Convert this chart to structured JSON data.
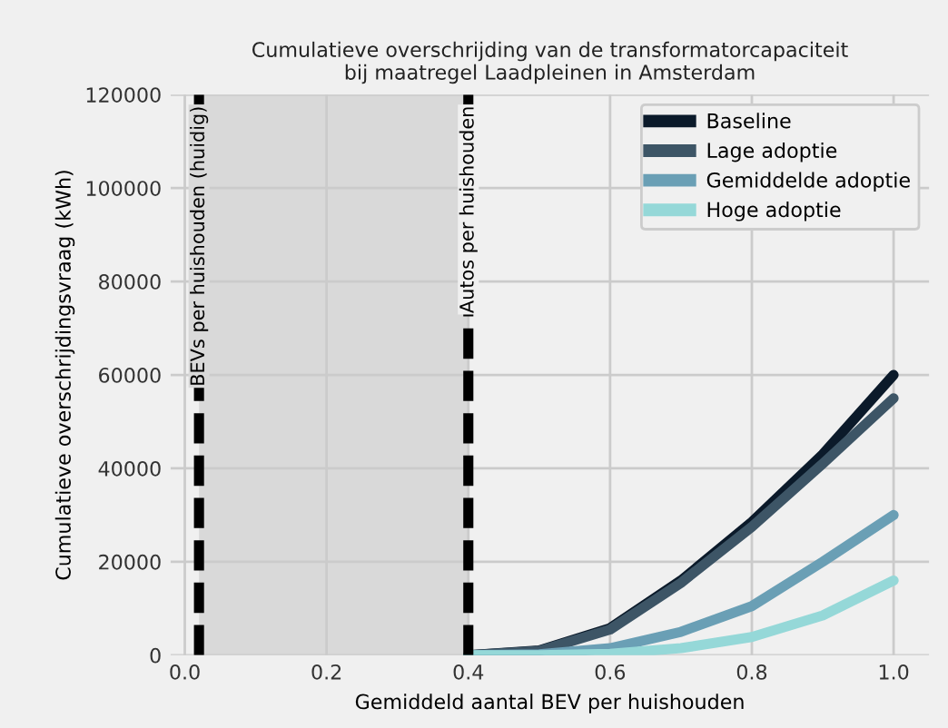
{
  "chart_data": {
    "type": "line",
    "title": "Cumulatieve overschrijding van de transformatorcapaciteit\nbij maatregel Laadpleinen in Amsterdam",
    "xlabel": "Gemiddeld aantal BEV per huishouden",
    "ylabel": "Cumulatieve overschrijdingsvraag (kWh)",
    "x": [
      0.4,
      0.5,
      0.6,
      0.7,
      0.8,
      0.9,
      1.0
    ],
    "series": [
      {
        "name": "Baseline",
        "color": "#0b1a2a",
        "values": [
          0,
          1000,
          5800,
          16000,
          28500,
          43000,
          60000
        ]
      },
      {
        "name": "Lage adoptie",
        "color": "#3d5566",
        "values": [
          0,
          900,
          5500,
          15500,
          27500,
          41000,
          55000
        ]
      },
      {
        "name": "Gemiddelde adoptie",
        "color": "#6a9fb5",
        "values": [
          0,
          200,
          1500,
          5000,
          10500,
          20000,
          30000
        ]
      },
      {
        "name": "Hoge adoptie",
        "color": "#95d8d8",
        "values": [
          0,
          0,
          300,
          1500,
          3900,
          8500,
          16000
        ]
      }
    ],
    "xlim": [
      -0.02,
      1.05
    ],
    "ylim": [
      0,
      120000
    ],
    "xticks": [
      {
        "value": 0,
        "label": "0.0"
      },
      0.2,
      0.4,
      0.6,
      0.8,
      {
        "value": 1,
        "label": "1.0"
      }
    ],
    "yticks": [
      0,
      20000,
      40000,
      60000,
      80000,
      100000,
      120000
    ],
    "ref_lines": [
      {
        "axis": "x",
        "value": 0.02,
        "label": "BEVs per huishouden (huidig)",
        "color": "#000000",
        "line_style": "dashed"
      },
      {
        "axis": "x",
        "value": 0.4,
        "label": "Autos per huishouden",
        "color": "#000000",
        "line_style": "dashed"
      }
    ],
    "bands": [
      {
        "axis": "x",
        "from": 0.02,
        "to": 0.4,
        "color": "#d9d9d9"
      }
    ],
    "grid": true,
    "legend": "top right",
    "marker": "none",
    "line_style": "solid"
  }
}
